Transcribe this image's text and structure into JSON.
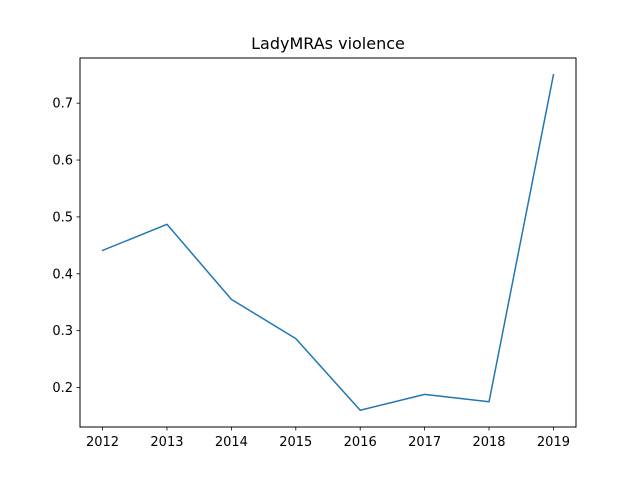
{
  "chart_data": {
    "type": "line",
    "title": "LadyMRAs violence",
    "xlabel": "",
    "ylabel": "",
    "x": [
      2012,
      2013,
      2014,
      2015,
      2016,
      2017,
      2018,
      2019
    ],
    "series": [
      {
        "values": [
          0.441,
          0.487,
          0.355,
          0.286,
          0.16,
          0.188,
          0.175,
          0.75
        ]
      }
    ],
    "xticks": [
      "2012",
      "2013",
      "2014",
      "2015",
      "2016",
      "2017",
      "2018",
      "2019"
    ],
    "yticks": [
      0.2,
      0.3,
      0.4,
      0.5,
      0.6,
      0.7
    ],
    "ytick_labels": [
      "0.2",
      "0.3",
      "0.4",
      "0.5",
      "0.6",
      "0.7"
    ],
    "xlim": [
      2011.65,
      2019.35
    ],
    "ylim": [
      0.1306,
      0.7794
    ],
    "grid": false,
    "line_color": "#1f77b4"
  }
}
